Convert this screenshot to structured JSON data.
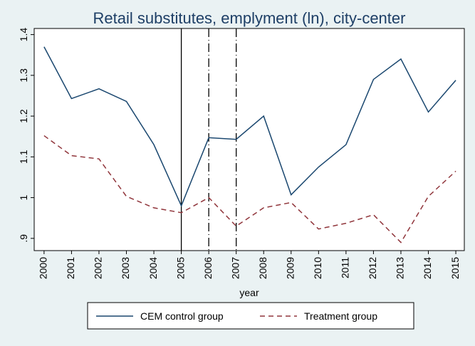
{
  "chart_data": {
    "type": "line",
    "title": "Retail substitutes, emplyment (ln), city-center",
    "x_label": "year",
    "x": [
      2000,
      2001,
      2002,
      2003,
      2004,
      2005,
      2006,
      2007,
      2008,
      2009,
      2010,
      2011,
      2012,
      2013,
      2014,
      2015
    ],
    "series": [
      {
        "name": "CEM control group",
        "color": "#1a476f",
        "dash": "solid",
        "values": [
          1.37,
          1.243,
          1.267,
          1.236,
          1.13,
          0.98,
          1.147,
          1.143,
          1.2,
          1.007,
          1.075,
          1.13,
          1.29,
          1.34,
          1.21,
          1.288
        ]
      },
      {
        "name": "Treatment group",
        "color": "#90353b",
        "dash": "dashed",
        "values": [
          1.152,
          1.103,
          1.095,
          1.003,
          0.975,
          0.963,
          1.0,
          0.93,
          0.975,
          0.988,
          0.923,
          0.937,
          0.958,
          0.89,
          1.003,
          1.065
        ]
      }
    ],
    "vlines": [
      {
        "x": 2005,
        "style": "solid"
      },
      {
        "x": 2006,
        "style": "dashdot"
      },
      {
        "x": 2007,
        "style": "dashdot"
      }
    ],
    "xlim": [
      1999.64,
      2015.31
    ],
    "xticks": [
      2000,
      2001,
      2002,
      2003,
      2004,
      2005,
      2006,
      2007,
      2008,
      2009,
      2010,
      2011,
      2012,
      2013,
      2014,
      2015
    ],
    "ylim": [
      0.87,
      1.415
    ],
    "yticks": [
      {
        "value": 0.9,
        "label": ".9"
      },
      1,
      1.1,
      1.2,
      1.3,
      1.4
    ],
    "grid": false,
    "legend": "bottom"
  }
}
